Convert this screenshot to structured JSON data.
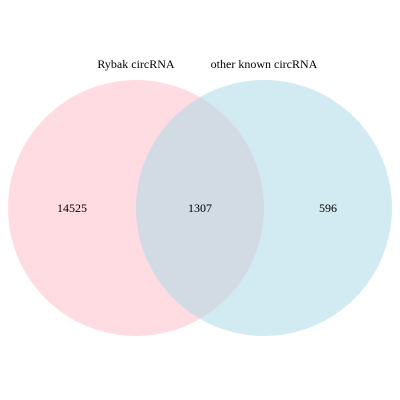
{
  "venn": {
    "sets": [
      {
        "name": "Rybak circRNA",
        "color": "#ffc0cb",
        "opacity": 0.55
      },
      {
        "name": "other known circRNA",
        "color": "#add8e6",
        "opacity": 0.55
      }
    ],
    "counts": {
      "left_only": "14525",
      "overlap": "1307",
      "right_only": "596"
    }
  }
}
